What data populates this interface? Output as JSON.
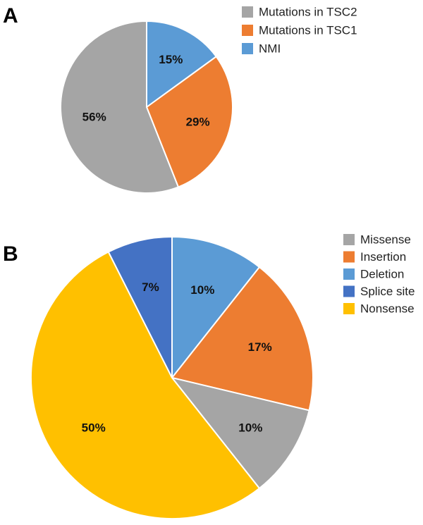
{
  "chart_data": [
    {
      "type": "pie",
      "panel": "A",
      "title": "",
      "legend_position": "top-right",
      "slices": [
        {
          "label": "NMI",
          "value": 15,
          "value_label": "15%",
          "color": "#5b9bd5"
        },
        {
          "label": "Mutations in TSC1",
          "value": 29,
          "value_label": "29%",
          "color": "#ed7d31"
        },
        {
          "label": "Mutations in TSC2",
          "value": 56,
          "value_label": "56%",
          "color": "#a5a5a5"
        }
      ],
      "legend": [
        {
          "label": "Mutations in TSC2",
          "color": "#a5a5a5"
        },
        {
          "label": "Mutations in TSC1",
          "color": "#ed7d31"
        },
        {
          "label": "NMI",
          "color": "#5b9bd5"
        }
      ]
    },
    {
      "type": "pie",
      "panel": "B",
      "title": "",
      "legend_position": "top-right",
      "slices": [
        {
          "label": "Deletion",
          "value": 10,
          "value_label": "10%",
          "color": "#5b9bd5"
        },
        {
          "label": "Insertion",
          "value": 17,
          "value_label": "17%",
          "color": "#ed7d31"
        },
        {
          "label": "Missense",
          "value": 10,
          "value_label": "10%",
          "color": "#a5a5a5"
        },
        {
          "label": "Nonsense",
          "value": 50,
          "value_label": "50%",
          "color": "#ffc000"
        },
        {
          "label": "Splice site",
          "value": 7,
          "value_label": "7%",
          "color": "#4472c4"
        }
      ],
      "legend": [
        {
          "label": "Missense",
          "color": "#a5a5a5"
        },
        {
          "label": "Insertion",
          "color": "#ed7d31"
        },
        {
          "label": "Deletion",
          "color": "#5b9bd5"
        },
        {
          "label": "Splice site",
          "color": "#4472c4"
        },
        {
          "label": "Nonsense",
          "color": "#ffc000"
        }
      ]
    }
  ]
}
